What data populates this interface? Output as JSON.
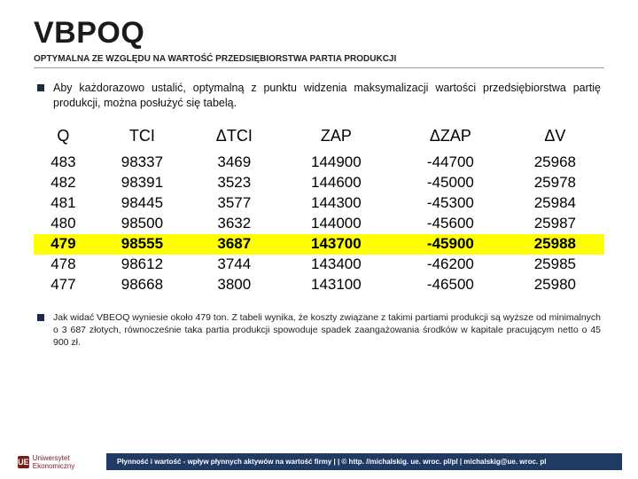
{
  "title": "VBPOQ",
  "subtitle": "OPTYMALNA ZE WZGLĘDU NA WARTOŚĆ PRZEDSIĘBIORSTWA PARTIA PRODUKCJI",
  "intro": "Aby każdorazowo ustalić, optymalną z punktu widzenia maksymalizacji wartości przedsiębiorstwa partię produkcji, można posłużyć się tabelą.",
  "table": {
    "headers": [
      "Q",
      "TCI",
      "ΔTCI",
      "ZAP",
      "ΔZAP",
      "ΔV"
    ],
    "rows": [
      {
        "cells": [
          "483",
          "98337",
          "3469",
          "144900",
          "-44700",
          "25968"
        ],
        "hl": false
      },
      {
        "cells": [
          "482",
          "98391",
          "3523",
          "144600",
          "-45000",
          "25978"
        ],
        "hl": false
      },
      {
        "cells": [
          "481",
          "98445",
          "3577",
          "144300",
          "-45300",
          "25984"
        ],
        "hl": false
      },
      {
        "cells": [
          "480",
          "98500",
          "3632",
          "144000",
          "-45600",
          "25987"
        ],
        "hl": false
      },
      {
        "cells": [
          "479",
          "98555",
          "3687",
          "143700",
          "-45900",
          "25988"
        ],
        "hl": true
      },
      {
        "cells": [
          "478",
          "98612",
          "3744",
          "143400",
          "-46200",
          "25985"
        ],
        "hl": false
      },
      {
        "cells": [
          "477",
          "98668",
          "3800",
          "143100",
          "-46500",
          "25980"
        ],
        "hl": false
      }
    ]
  },
  "footnote": "Jak widać VBEOQ wyniesie około 479 ton. Z tabeli wynika, że koszty związane z takimi partiami produkcji są wyższe od minimalnych o 3 687 złotych, równocześnie taka partia produkcji spowoduje spadek zaangażowania środków w kapitale pracującym netto o 45 900 zł.",
  "logo_text": "Uniwersytet Ekonomiczny",
  "logo_mark": "UE",
  "footer_bar": "Płynność i wartość - wpływ płynnych aktywów na wartość firmy | | © http. //michalskig. ue. wroc. pl/pl | michalskig@ue. wroc. pl"
}
